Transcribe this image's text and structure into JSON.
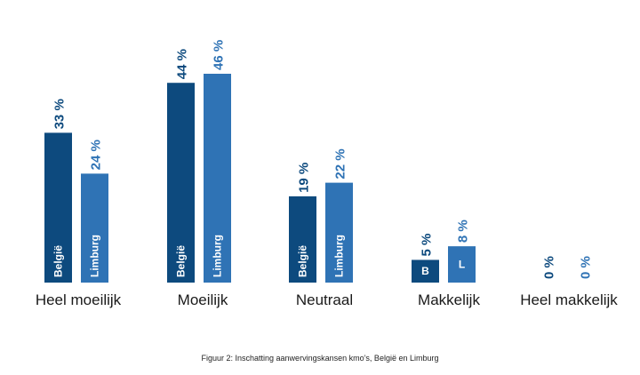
{
  "chart_data": {
    "type": "bar",
    "categories": [
      "Heel moeilijk",
      "Moeilijk",
      "Neutraal",
      "Makkelijk",
      "Heel makkelijk"
    ],
    "series": [
      {
        "name": "België",
        "short": "B",
        "color": "#0d4a7e",
        "values": [
          33,
          44,
          19,
          5,
          0
        ],
        "value_labels": [
          "33 %",
          "44 %",
          "19 %",
          "5 %",
          "0 %"
        ]
      },
      {
        "name": "Limburg",
        "short": "L",
        "color": "#2f73b5",
        "values": [
          24,
          46,
          22,
          8,
          0
        ],
        "value_labels": [
          "24 %",
          "46 %",
          "22 %",
          "8 %",
          "0 %"
        ]
      }
    ],
    "ylim": [
      0,
      46
    ],
    "grid": false,
    "legend": "none",
    "title": "",
    "xlabel": "",
    "ylabel": ""
  },
  "caption": "Figuur 2: Inschatting aanwervingskansen kmo’s, België en Limburg"
}
